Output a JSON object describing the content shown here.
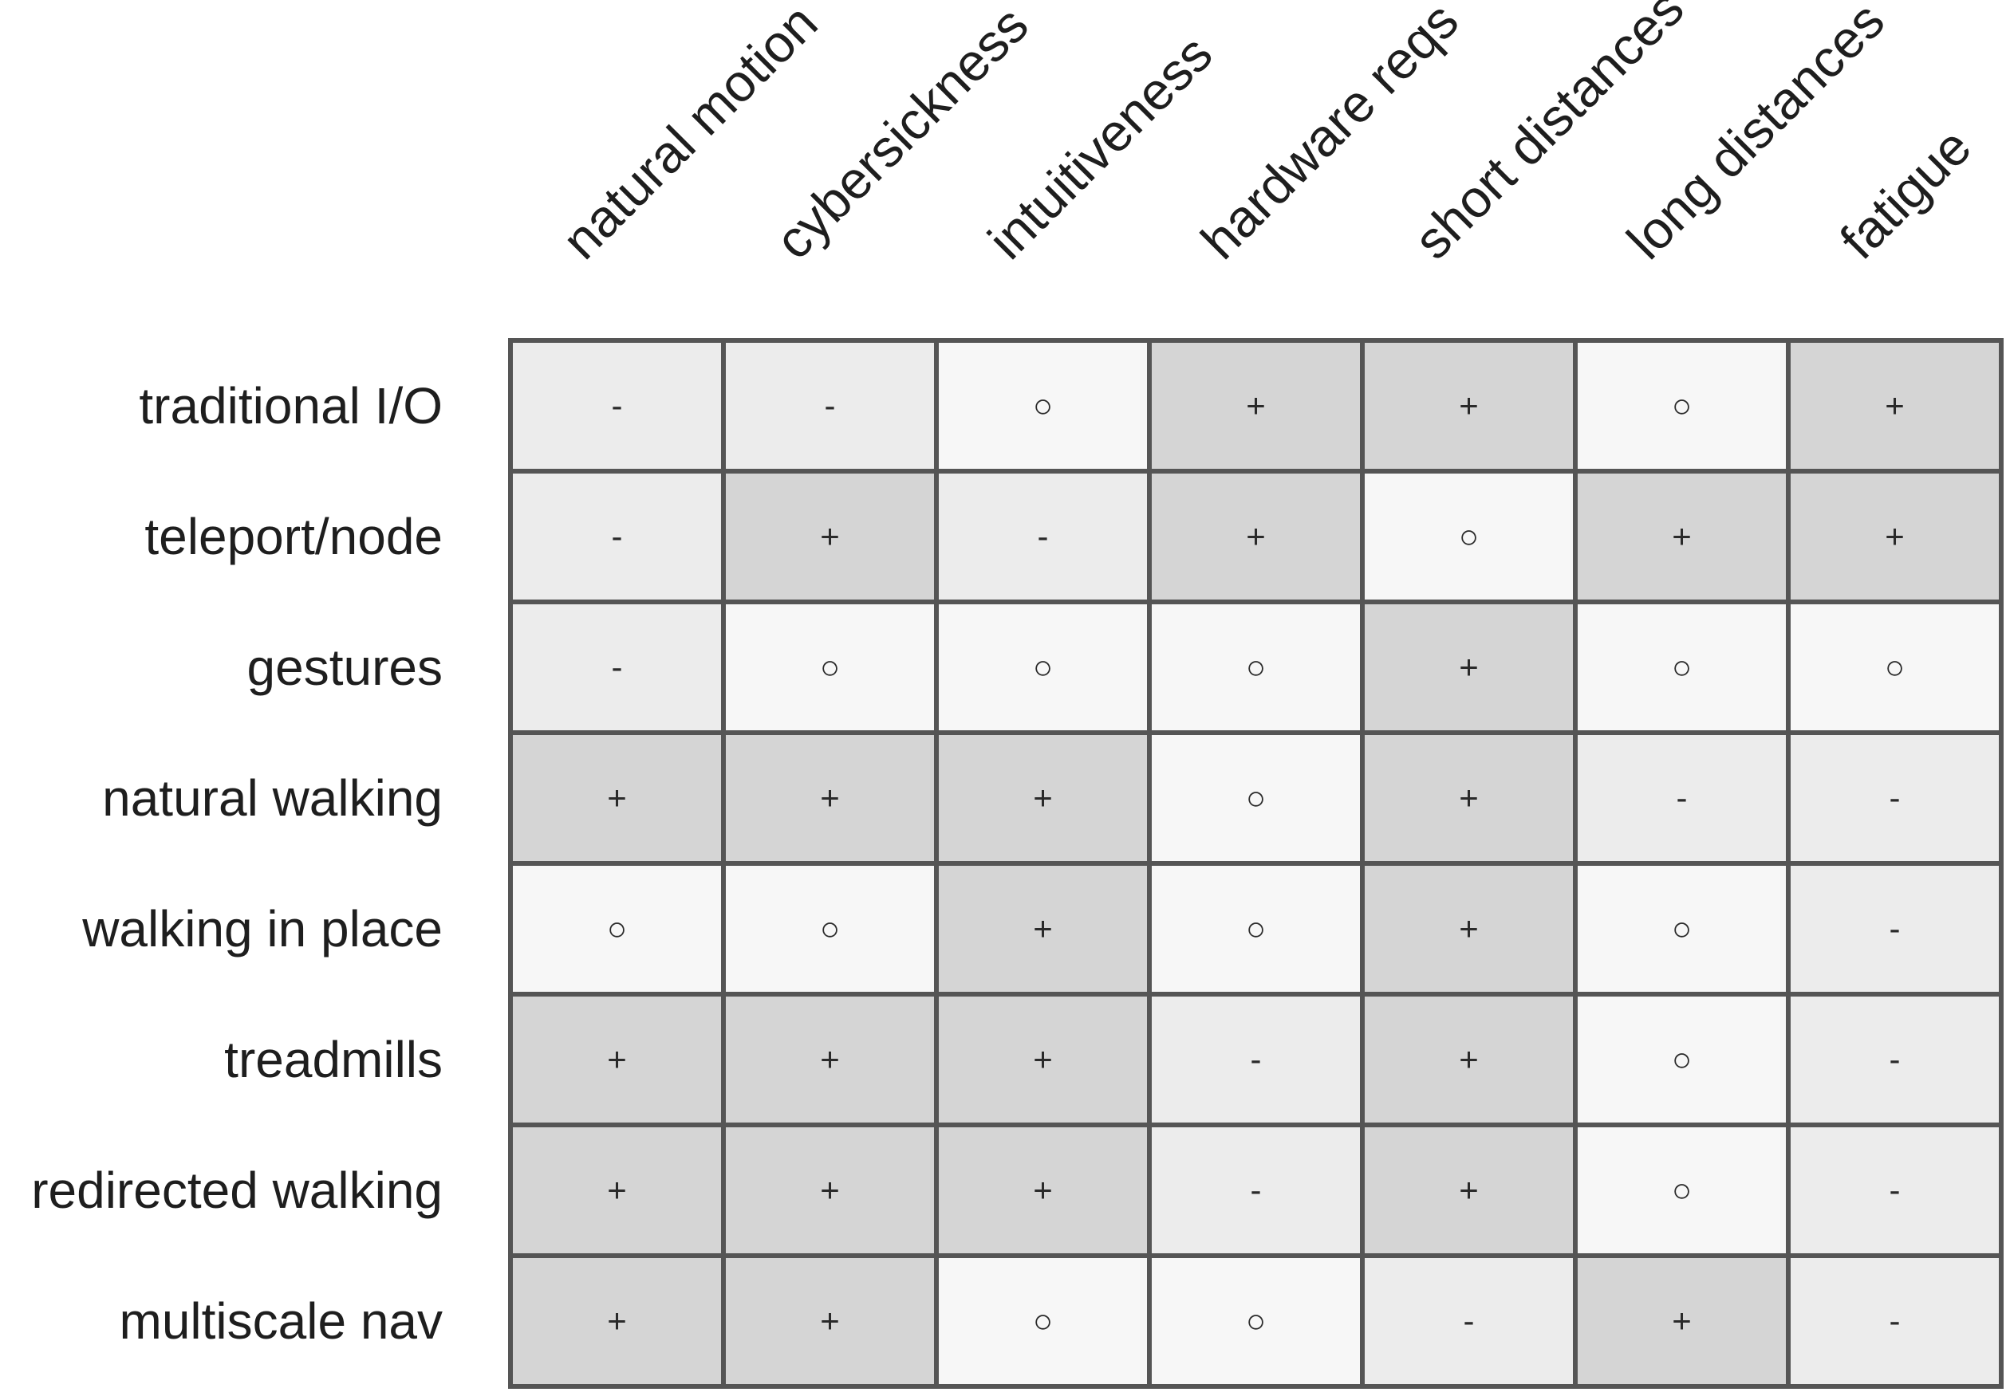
{
  "columns": [
    "natural motion",
    "cybersickness",
    "intuitiveness",
    "hardware reqs",
    "short distances",
    "long distances",
    "fatigue"
  ],
  "rows": [
    {
      "label": "traditional I/O",
      "values": [
        "-",
        "-",
        "○",
        "+",
        "+",
        "○",
        "+"
      ]
    },
    {
      "label": "teleport/node",
      "values": [
        "-",
        "+",
        "-",
        "+",
        "○",
        "+",
        "+"
      ]
    },
    {
      "label": "gestures",
      "values": [
        "-",
        "○",
        "○",
        "○",
        "+",
        "○",
        "○"
      ]
    },
    {
      "label": "natural walking",
      "values": [
        "+",
        "+",
        "+",
        "○",
        "+",
        "-",
        "-"
      ]
    },
    {
      "label": "walking in place",
      "values": [
        "○",
        "○",
        "+",
        "○",
        "+",
        "○",
        "-"
      ]
    },
    {
      "label": "treadmills",
      "values": [
        "+",
        "+",
        "+",
        "-",
        "+",
        "○",
        "-"
      ]
    },
    {
      "label": "redirected walking",
      "values": [
        "+",
        "+",
        "+",
        "-",
        "+",
        "○",
        "-"
      ]
    },
    {
      "label": "multiscale nav",
      "values": [
        "+",
        "+",
        "○",
        "○",
        "-",
        "+",
        "-"
      ]
    }
  ],
  "colors": {
    "plus": "#d5d5d5",
    "circle": "#f7f7f7",
    "minus": "#ececec",
    "grid": "#555555"
  }
}
